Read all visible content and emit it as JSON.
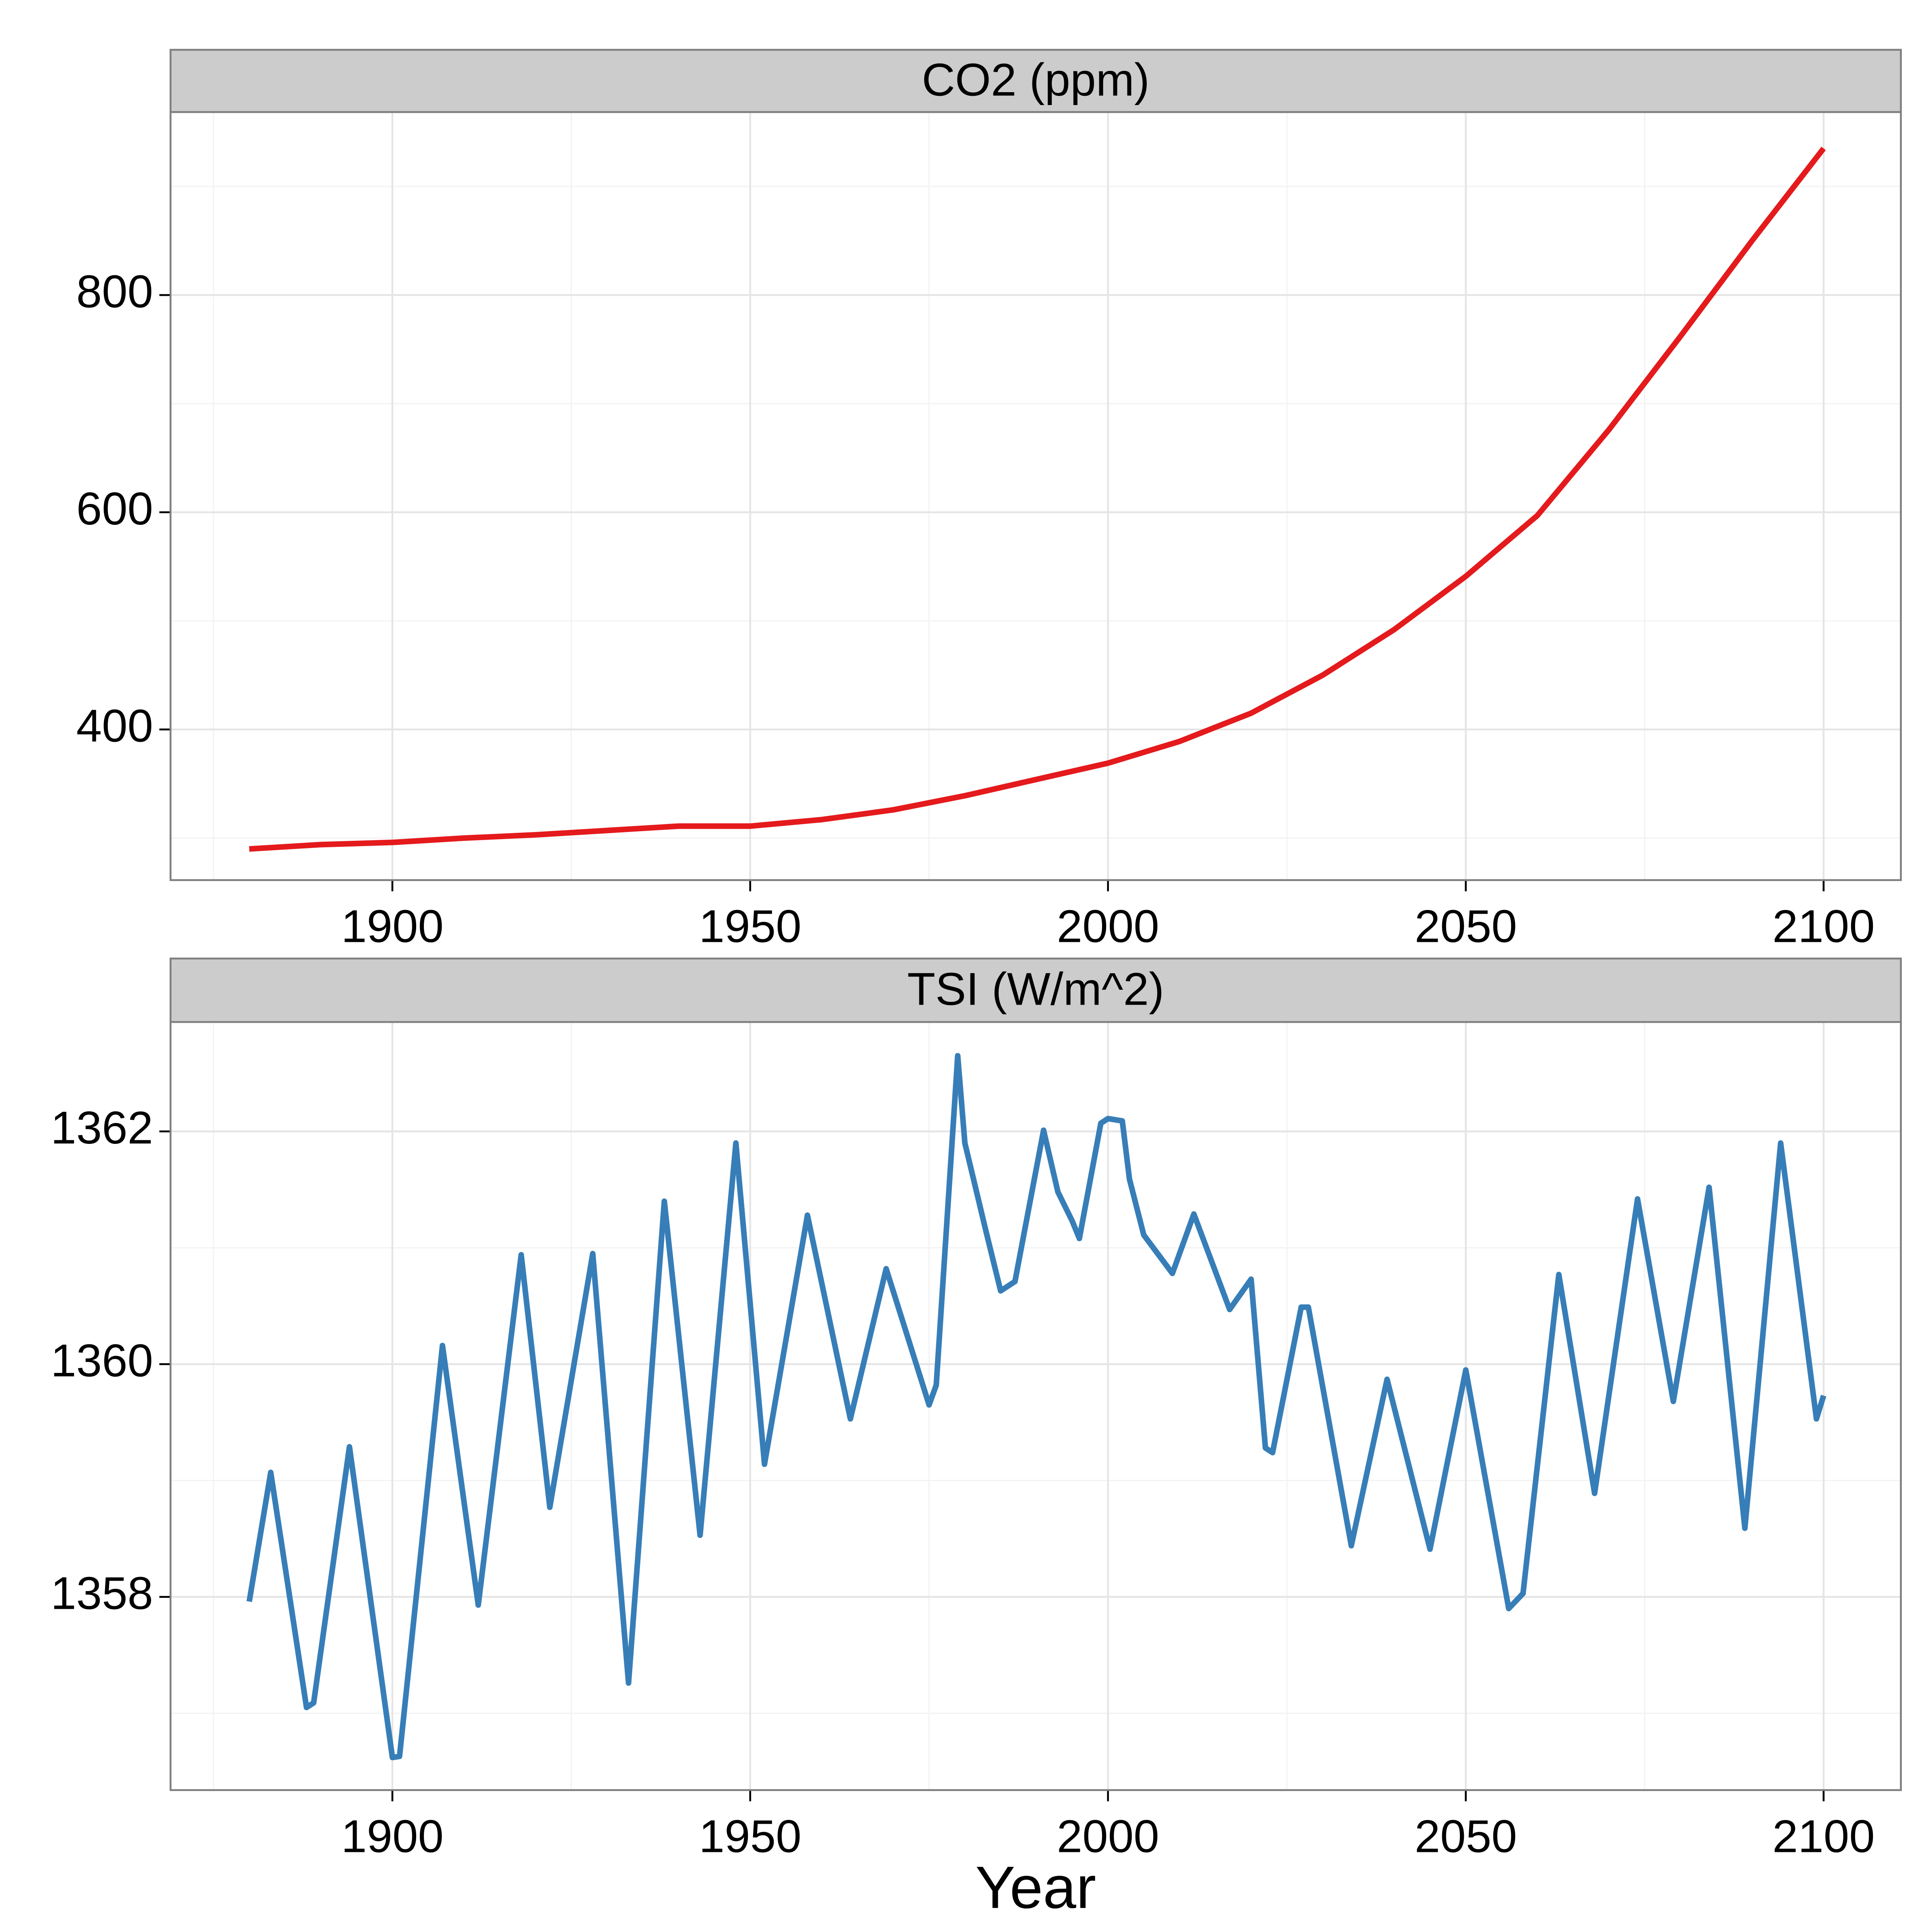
{
  "chart_data": [
    {
      "type": "line",
      "title": "CO2 (ppm)",
      "x": [
        1880,
        1890,
        1900,
        1910,
        1920,
        1930,
        1940,
        1950,
        1960,
        1970,
        1980,
        1990,
        2000,
        2010,
        2020,
        2030,
        2040,
        2050,
        2060,
        2070,
        2080,
        2090,
        2100
      ],
      "series": [
        {
          "name": "CO2 (ppm)",
          "color": "#e41a1c",
          "values": [
            290,
            294,
            296,
            300,
            303,
            307,
            311,
            311,
            317,
            326,
            339,
            354,
            369,
            389,
            415,
            450,
            492,
            541,
            597,
            676,
            762,
            850,
            935
          ]
        }
      ],
      "xlim": [
        1869,
        2110.8
      ],
      "xticks": [
        1900,
        1950,
        2000,
        2050,
        2100
      ],
      "minor_xticks": [
        1875,
        1925,
        1975,
        2025,
        2075
      ],
      "ylim": [
        261.3,
        968.5
      ],
      "yticks": [
        400,
        600,
        800
      ],
      "minor_yticks": [
        300,
        500,
        700,
        900
      ],
      "grid": true
    },
    {
      "type": "line",
      "title": "TSI (W/m^2)",
      "xlabel": "Year",
      "x": [
        1880,
        1883,
        1888,
        1889,
        1894,
        1900,
        1901,
        1907,
        1912,
        1918,
        1922,
        1928,
        1933,
        1938,
        1943,
        1948,
        1952,
        1958,
        1964,
        1969,
        1975,
        1976,
        1979,
        1980,
        1983,
        1985,
        1987,
        1991,
        1993,
        1995,
        1996,
        1999,
        2000,
        2002,
        2003,
        2005,
        2009,
        2012,
        2017,
        2020,
        2022,
        2023,
        2027,
        2028,
        2034,
        2039,
        2045,
        2050,
        2056,
        2058,
        2063,
        2068,
        2074,
        2079,
        2084,
        2089,
        2094,
        2099,
        2100
      ],
      "series": [
        {
          "name": "TSI (W/m^2)",
          "color": "#377eb8",
          "values": [
            1357.96,
            1359.07,
            1357.05,
            1357.09,
            1359.29,
            1356.62,
            1356.63,
            1360.16,
            1357.93,
            1360.94,
            1358.77,
            1360.95,
            1357.26,
            1361.4,
            1358.53,
            1361.9,
            1359.14,
            1361.28,
            1359.53,
            1360.82,
            1359.65,
            1359.82,
            1362.65,
            1361.9,
            1361.13,
            1360.63,
            1360.71,
            1362.01,
            1361.48,
            1361.23,
            1361.08,
            1362.07,
            1362.11,
            1362.09,
            1361.59,
            1361.11,
            1360.78,
            1361.29,
            1360.47,
            1360.73,
            1359.28,
            1359.24,
            1360.49,
            1360.49,
            1358.44,
            1359.87,
            1358.41,
            1359.95,
            1357.9,
            1358.03,
            1360.77,
            1358.89,
            1361.42,
            1359.68,
            1361.52,
            1358.59,
            1361.9,
            1359.53,
            1359.73
          ]
        }
      ],
      "xlim": [
        1869,
        2110.8
      ],
      "xticks": [
        1900,
        1950,
        2000,
        2050,
        2100
      ],
      "minor_xticks": [
        1875,
        1925,
        1975,
        2025,
        2075
      ],
      "ylim": [
        1356.34,
        1362.94
      ],
      "yticks": [
        1358,
        1360,
        1362
      ],
      "minor_yticks": [
        1357,
        1359,
        1361
      ],
      "grid": true
    }
  ]
}
